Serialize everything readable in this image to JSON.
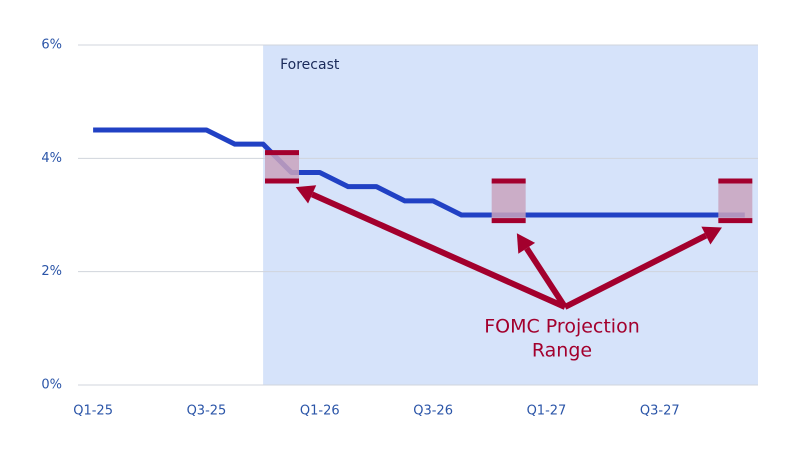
{
  "chart_data": {
    "type": "line",
    "x": [
      0,
      6,
      7.5,
      9,
      10.5,
      12,
      13.5,
      15,
      16.5,
      18,
      19.5,
      34.5
    ],
    "xlim": [
      -0.8,
      35.2
    ],
    "xticks": [
      {
        "value": 0,
        "label": "Q1-25"
      },
      {
        "value": 6,
        "label": "Q3-25"
      },
      {
        "value": 12,
        "label": "Q1-26"
      },
      {
        "value": 18,
        "label": "Q3-26"
      },
      {
        "value": 24,
        "label": "Q1-27"
      },
      {
        "value": 30,
        "label": "Q3-27"
      }
    ],
    "ylim": [
      0,
      6
    ],
    "yticks": [
      {
        "value": 0,
        "label": "0%"
      },
      {
        "value": 2,
        "label": "2%"
      },
      {
        "value": 4,
        "label": "4%"
      },
      {
        "value": 6,
        "label": "6%"
      }
    ],
    "grid": true,
    "series": [
      {
        "color": "#2141c4",
        "values": [
          4.5,
          4.5,
          4.25,
          4.25,
          3.75,
          3.75,
          3.5,
          3.5,
          3.25,
          3.25,
          3.0,
          3.0
        ]
      }
    ],
    "forecast": {
      "label": "Forecast",
      "start": 9,
      "color": "#d6e3fa"
    },
    "ranges": {
      "label_lines": [
        "FOMC Projection",
        "Range"
      ],
      "color": "#a3002d",
      "fill": "#c9a3bd",
      "x": [
        10,
        22,
        34
      ],
      "low": [
        3.6,
        2.9,
        2.9
      ],
      "high": [
        4.1,
        3.6,
        3.6
      ]
    }
  }
}
